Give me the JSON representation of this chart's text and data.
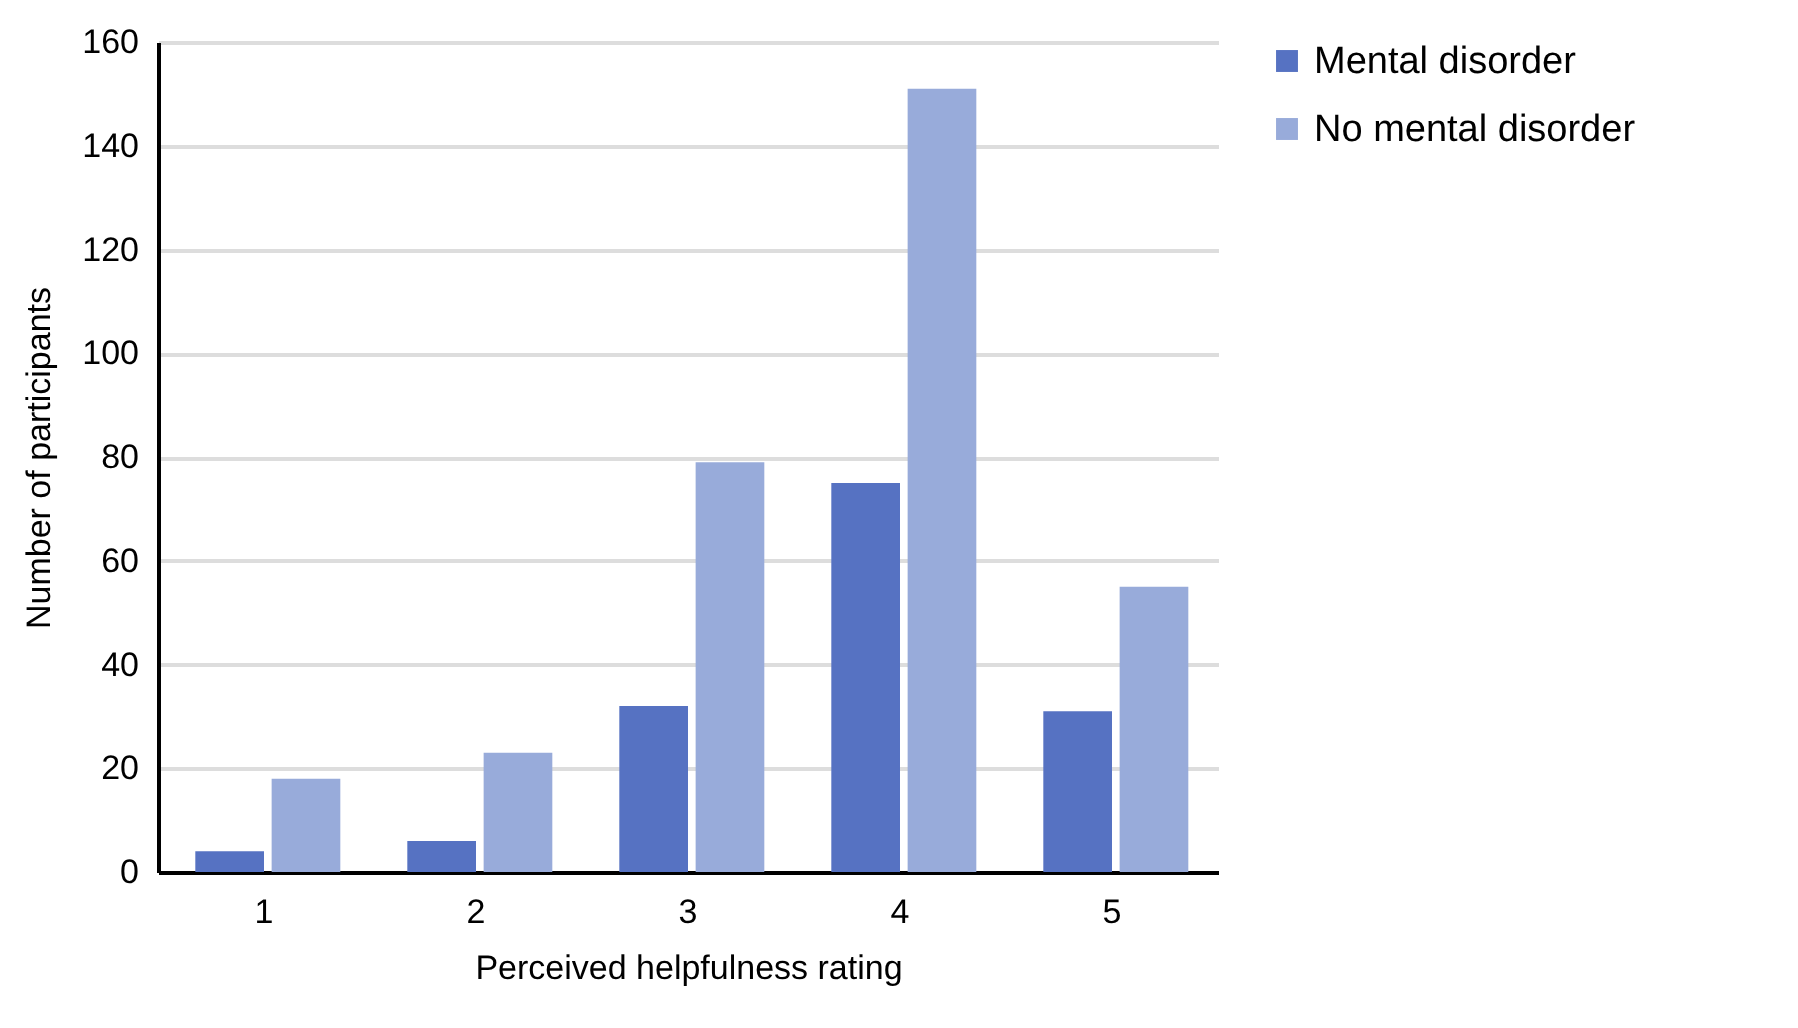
{
  "chart_data": {
    "type": "bar",
    "xlabel": "Perceived helpfulness rating",
    "ylabel": "Number of participants",
    "categories": [
      "1",
      "2",
      "3",
      "4",
      "5"
    ],
    "series": [
      {
        "name": "Mental disorder",
        "color": "#5672c2",
        "values": [
          4,
          6,
          32,
          75,
          31
        ]
      },
      {
        "name": "No mental disorder",
        "color": "#98abda",
        "values": [
          18,
          23,
          79,
          151,
          55
        ]
      }
    ],
    "ylim": [
      0,
      160
    ],
    "yticks": [
      0,
      20,
      40,
      60,
      80,
      100,
      120,
      140,
      160
    ],
    "grid": "y",
    "legend": "right"
  }
}
